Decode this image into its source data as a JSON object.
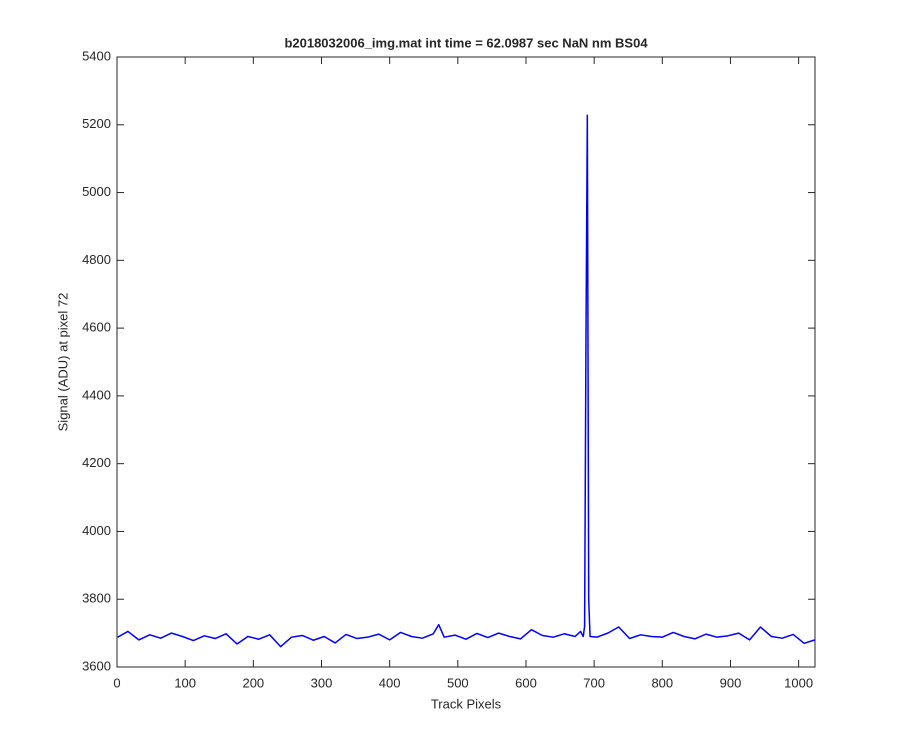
{
  "chart_data": {
    "type": "line",
    "title": "b2018032006_img.mat int time = 62.0987 sec  NaN nm BS04",
    "x_label": "Track Pixels",
    "y_label": "Signal (ADU) at pixel 72",
    "x": [
      1,
      16,
      32,
      48,
      64,
      80,
      96,
      112,
      128,
      144,
      160,
      176,
      192,
      208,
      224,
      240,
      256,
      272,
      288,
      304,
      320,
      336,
      352,
      368,
      384,
      400,
      416,
      432,
      448,
      464,
      472,
      480,
      496,
      512,
      528,
      544,
      560,
      576,
      592,
      608,
      624,
      640,
      656,
      672,
      680,
      684,
      686,
      688,
      690,
      692,
      694,
      704,
      720,
      736,
      752,
      768,
      784,
      800,
      816,
      832,
      848,
      864,
      880,
      896,
      912,
      928,
      944,
      960,
      976,
      992,
      1008,
      1024
    ],
    "series": [
      {
        "color": "#0000ff",
        "values": [
          3688,
          3705,
          3680,
          3695,
          3685,
          3700,
          3690,
          3678,
          3692,
          3684,
          3698,
          3668,
          3690,
          3682,
          3695,
          3660,
          3688,
          3693,
          3679,
          3690,
          3671,
          3696,
          3684,
          3688,
          3697,
          3680,
          3702,
          3690,
          3685,
          3698,
          3725,
          3688,
          3694,
          3682,
          3699,
          3687,
          3700,
          3690,
          3683,
          3710,
          3693,
          3688,
          3698,
          3690,
          3705,
          3690,
          3720,
          4570,
          5228,
          3800,
          3690,
          3688,
          3700,
          3718,
          3684,
          3695,
          3690,
          3688,
          3702,
          3690,
          3683,
          3697,
          3688,
          3692,
          3700,
          3680,
          3718,
          3690,
          3685,
          3696,
          3670,
          3680
        ]
      }
    ],
    "xlim": [
      0,
      1024
    ],
    "xticks": [
      0,
      100,
      200,
      300,
      400,
      500,
      600,
      700,
      800,
      900,
      1000
    ],
    "ylim": [
      3600,
      5400
    ],
    "yticks": [
      3600,
      3800,
      4000,
      4200,
      4400,
      4600,
      4800,
      5000,
      5200,
      5400
    ],
    "grid": false
  }
}
